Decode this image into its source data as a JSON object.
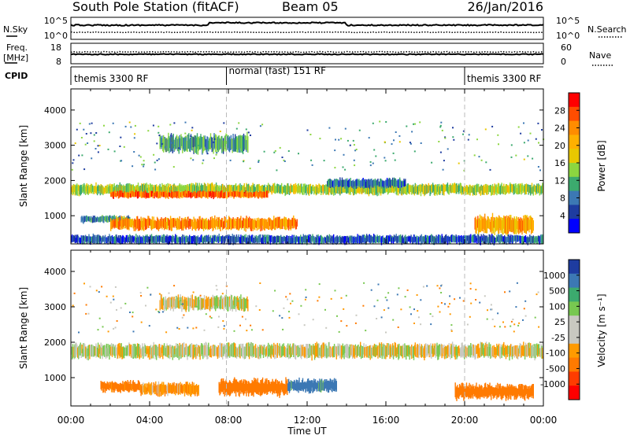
{
  "header": {
    "station": "South Pole Station (fitACF)",
    "beam": "Beam 05",
    "date": "26/Jan/2016"
  },
  "sky_panel": {
    "left_label": "N.Sky",
    "right_label": "N.Search",
    "ticks_left": [
      "10^5",
      "10^0"
    ],
    "ticks_right": [
      "10^5",
      "10^0"
    ]
  },
  "freq_panel": {
    "left_label_1": "Freq.",
    "left_label_2": "[MHz]",
    "right_label": "Nave",
    "ticks_left": [
      "18",
      "8"
    ],
    "ticks_right": [
      "60",
      "0"
    ]
  },
  "cpid_panel": {
    "label": "CPID",
    "modes": [
      "themis 3300 RF",
      "normal (fast) 151 RF",
      "themis 3300 RF"
    ],
    "mode_change_hours": [
      7.9,
      20.0
    ]
  },
  "power_panel": {
    "ylabel": "Slant Range [km]",
    "cbar_label": "Power [dB]",
    "cbar_ticks": [
      "28",
      "24",
      "20",
      "16",
      "12",
      "8",
      "4"
    ],
    "cbar_colors": [
      "#ff0000",
      "#ff4d00",
      "#ff8c00",
      "#ffb000",
      "#e8c800",
      "#8cd640",
      "#3caa6e",
      "#3c78b4",
      "#1e3ca0",
      "#0000ff"
    ]
  },
  "velocity_panel": {
    "ylabel": "Slant Range [km]",
    "cbar_label": "Velocity [m s⁻¹]",
    "cbar_ticks": [
      "1000",
      "500",
      "100",
      "25",
      "-25",
      "-100",
      "-500",
      "-1000"
    ],
    "cbar_colors": [
      "#1e3ca0",
      "#3c78b4",
      "#3caa6e",
      "#78c850",
      "#c8c8c0",
      "#c8c8c0",
      "#ff9a00",
      "#ff7a00",
      "#ff3c00",
      "#ff0000"
    ]
  },
  "x_axis": {
    "label": "Time UT",
    "ticks": [
      "00:00",
      "04:00",
      "08:00",
      "12:00",
      "16:00",
      "20:00",
      "00:00"
    ]
  },
  "chart_data": [
    {
      "type": "heatmap",
      "title": "Power",
      "xlabel": "Time UT",
      "ylabel": "Slant Range [km]",
      "xlim_hours": [
        0,
        24
      ],
      "ylim": [
        200,
        4600
      ],
      "yticks": [
        1000,
        2000,
        3000,
        4000
      ],
      "zlabel": "Power [dB]",
      "zlim": [
        0,
        30
      ],
      "bands": [
        {
          "t0": 0.0,
          "t1": 24.0,
          "r0": 1600,
          "r1": 1900,
          "p": 14
        },
        {
          "t0": 2.0,
          "t1": 10.0,
          "r0": 1500,
          "r1": 1700,
          "p": 24
        },
        {
          "t0": 0.5,
          "t1": 3.0,
          "r0": 800,
          "r1": 1000,
          "p": 9
        },
        {
          "t0": 2.0,
          "t1": 11.5,
          "r0": 600,
          "r1": 950,
          "p": 22
        },
        {
          "t0": 4.5,
          "t1": 9.0,
          "r0": 2800,
          "r1": 3300,
          "p": 10
        },
        {
          "t0": 13.0,
          "t1": 17.0,
          "r0": 1800,
          "r1": 2050,
          "p": 7
        },
        {
          "t0": 20.5,
          "t1": 23.5,
          "r0": 500,
          "r1": 1000,
          "p": 20
        },
        {
          "t0": 0.0,
          "t1": 24.0,
          "r0": 200,
          "r1": 450,
          "p": 6
        }
      ]
    },
    {
      "type": "heatmap",
      "title": "Velocity",
      "xlabel": "Time UT",
      "ylabel": "Slant Range [km]",
      "xlim_hours": [
        0,
        24
      ],
      "ylim": [
        200,
        4600
      ],
      "yticks": [
        1000,
        2000,
        3000,
        4000
      ],
      "zlabel": "Velocity [m s⁻¹]",
      "zlim": [
        -1000,
        1000
      ],
      "bands": [
        {
          "t0": 0.0,
          "t1": 24.0,
          "r0": 1550,
          "r1": 1950,
          "v": 0
        },
        {
          "t0": 1.5,
          "t1": 3.5,
          "r0": 600,
          "r1": 900,
          "v": -150
        },
        {
          "t0": 3.5,
          "t1": 6.5,
          "r0": 500,
          "r1": 850,
          "v": -80
        },
        {
          "t0": 7.5,
          "t1": 11.0,
          "r0": 500,
          "r1": 950,
          "v": -200
        },
        {
          "t0": 11.0,
          "t1": 13.5,
          "r0": 600,
          "r1": 950,
          "v": 150
        },
        {
          "t0": 19.5,
          "t1": 23.5,
          "r0": 400,
          "r1": 800,
          "v": -250
        },
        {
          "t0": 4.5,
          "t1": 9.0,
          "r0": 2900,
          "r1": 3300,
          "v": 0
        }
      ]
    }
  ]
}
